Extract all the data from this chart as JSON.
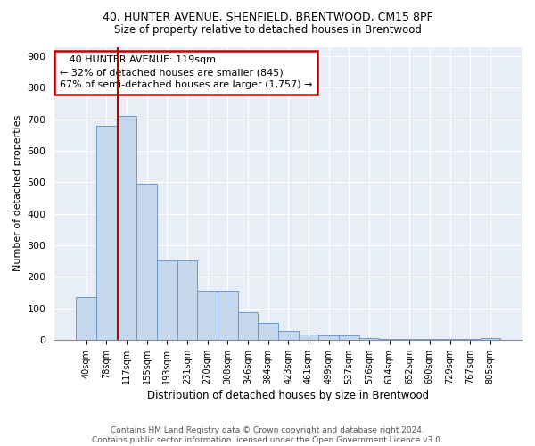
{
  "title1": "40, HUNTER AVENUE, SHENFIELD, BRENTWOOD, CM15 8PF",
  "title2": "Size of property relative to detached houses in Brentwood",
  "xlabel": "Distribution of detached houses by size in Brentwood",
  "ylabel": "Number of detached properties",
  "categories": [
    "40sqm",
    "78sqm",
    "117sqm",
    "155sqm",
    "193sqm",
    "231sqm",
    "270sqm",
    "308sqm",
    "346sqm",
    "384sqm",
    "423sqm",
    "461sqm",
    "499sqm",
    "537sqm",
    "576sqm",
    "614sqm",
    "652sqm",
    "690sqm",
    "729sqm",
    "767sqm",
    "805sqm"
  ],
  "values": [
    135,
    680,
    710,
    495,
    252,
    252,
    155,
    155,
    87,
    53,
    27,
    18,
    13,
    13,
    5,
    2,
    2,
    2,
    2,
    2,
    5
  ],
  "bar_color": "#c5d8ee",
  "bar_edge_color": "#5b8fcc",
  "vline_color": "#c00000",
  "annotation_box_color": "#c00000",
  "annotation_line1": "   40 HUNTER AVENUE: 119sqm",
  "annotation_line2": "← 32% of detached houses are smaller (845)",
  "annotation_line3": "67% of semi-detached houses are larger (1,757) →",
  "bg_color": "#e8eef8",
  "footer1": "Contains HM Land Registry data © Crown copyright and database right 2024.",
  "footer2": "Contains public sector information licensed under the Open Government Licence v3.0.",
  "ylim": [
    0,
    930
  ],
  "yticks": [
    0,
    100,
    200,
    300,
    400,
    500,
    600,
    700,
    800,
    900
  ]
}
